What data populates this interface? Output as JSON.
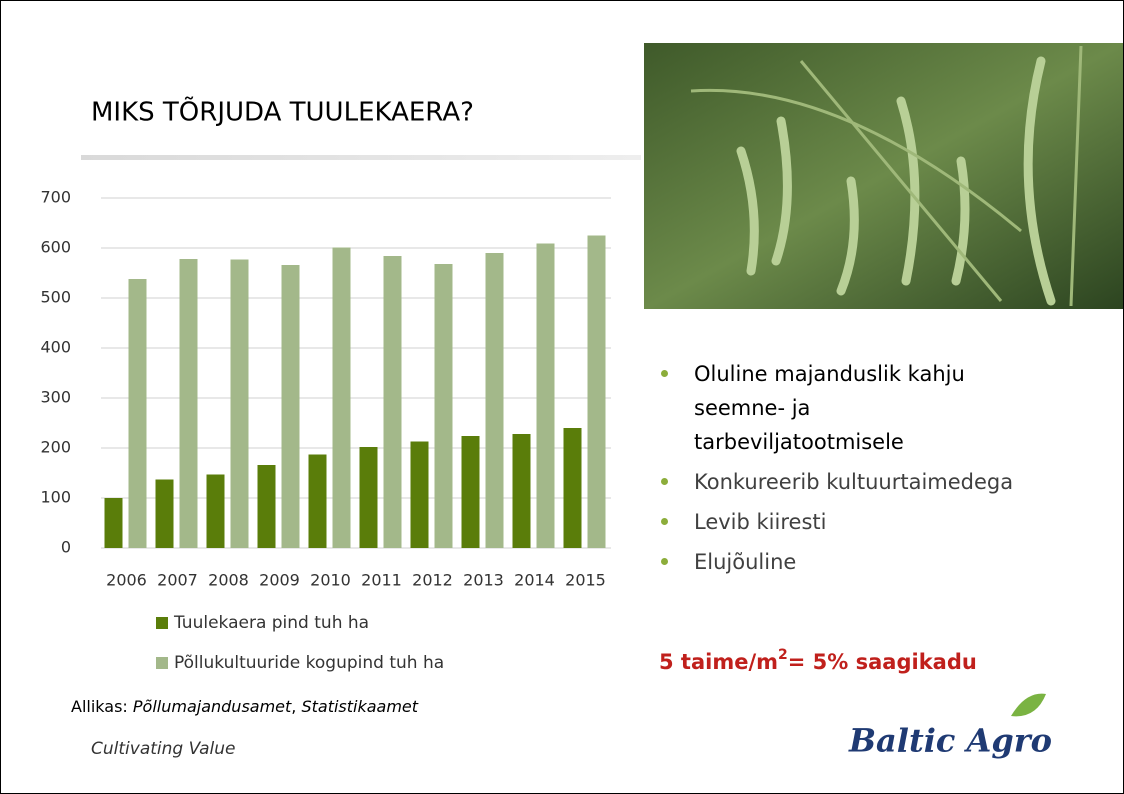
{
  "chart_data": {
    "type": "bar",
    "title": "MIKS TÕRJUDA TUULEKAERA?",
    "categories": [
      "2006",
      "2007",
      "2008",
      "2009",
      "2010",
      "2011",
      "2012",
      "2013",
      "2014",
      "2015"
    ],
    "series": [
      {
        "name": "Tuulekaera pind tuh ha",
        "color": "#5a7d0a",
        "values": [
          100,
          137,
          147,
          166,
          187,
          202,
          213,
          224,
          228,
          240
        ]
      },
      {
        "name": "Põllukultuuride kogupind tuh ha",
        "color": "#a3b88a",
        "values": [
          538,
          578,
          577,
          566,
          601,
          584,
          568,
          590,
          609,
          625
        ]
      }
    ],
    "ylim": [
      0,
      700
    ],
    "yticks": [
      0,
      100,
      200,
      300,
      400,
      500,
      600,
      700
    ],
    "grid": true,
    "legend": "bottom"
  },
  "slide": {
    "bullets": [
      "Oluline majanduslik kahju seemne- ja tarbeviljatootmisele",
      "Konkureerib kultuurtaimedega",
      "Levib kiiresti",
      "Elujõuline"
    ],
    "highlight": [
      "5 taime/m",
      "2",
      "= 5% saagikadu"
    ],
    "source": [
      "Allikas: ",
      "Põllumajandusamet",
      ", ",
      "Statistikaamet"
    ],
    "footer": "Cultivating Value",
    "logo": "Baltic Agro"
  }
}
